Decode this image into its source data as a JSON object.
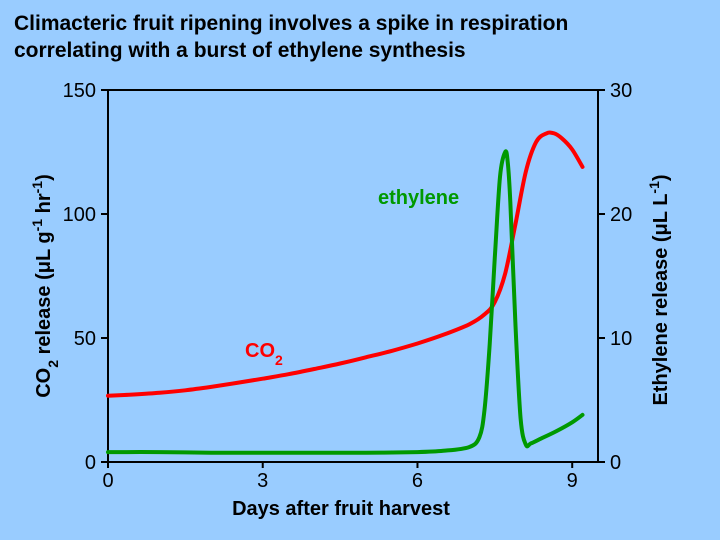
{
  "title_line1": "Climacteric fruit ripening involves a spike in respiration",
  "title_line2": "correlating with a burst of ethylene synthesis",
  "chart_data": {
    "type": "line",
    "x_label": "Days after fruit harvest",
    "y_label_left": {
      "base": "CO",
      "sub": "2",
      "rest": " release (μL g",
      "sup1": "-1",
      "mid": " hr",
      "sup2": "-1",
      "end": ")"
    },
    "y_label_right": {
      "base": "Ethylene release (μL L",
      "sup": "-1",
      "end": ")"
    },
    "x_ticks": [
      "0",
      "3",
      "6",
      "9"
    ],
    "y_left_ticks": [
      "0",
      "50",
      "100",
      "150"
    ],
    "y_right_ticks": [
      "0",
      "10",
      "20",
      "30"
    ],
    "xlim": [
      0,
      9.5
    ],
    "ylim_left": [
      0,
      150
    ],
    "ylim_right": [
      0,
      30
    ],
    "colors": {
      "co2": "#ff0000",
      "ethylene": "#009900"
    },
    "annotations": {
      "co2": {
        "base": "CO",
        "sub": "2"
      },
      "ethylene": "ethylene"
    },
    "series": [
      {
        "name": "CO2",
        "axis": "left",
        "x": [
          0.0,
          0.5,
          1.0,
          1.5,
          2.0,
          2.5,
          3.0,
          3.5,
          4.0,
          4.5,
          5.0,
          5.5,
          6.0,
          6.5,
          7.0,
          7.3,
          7.5,
          7.7,
          7.9,
          8.1,
          8.3,
          8.5,
          8.65,
          8.8,
          9.0,
          9.2
        ],
        "y": [
          26.7,
          27.2,
          27.9,
          28.9,
          30.3,
          31.9,
          33.6,
          35.4,
          37.5,
          39.7,
          42.2,
          44.8,
          47.8,
          51.3,
          55.5,
          59.5,
          64.5,
          76.0,
          96.0,
          117.0,
          129.0,
          132.5,
          132.5,
          130.5,
          126.0,
          119.0
        ]
      },
      {
        "name": "ethylene",
        "axis": "right",
        "x": [
          0.0,
          1.0,
          2.0,
          3.0,
          4.0,
          5.0,
          6.0,
          6.5,
          7.0,
          7.2,
          7.3,
          7.4,
          7.5,
          7.6,
          7.7,
          7.75,
          7.8,
          7.9,
          8.0,
          8.1,
          8.2,
          8.4,
          8.7,
          9.0,
          9.2
        ],
        "y": [
          0.8,
          0.8,
          0.75,
          0.75,
          0.75,
          0.75,
          0.8,
          0.9,
          1.2,
          2.0,
          4.2,
          9.5,
          16.5,
          23.0,
          25.0,
          24.2,
          21.0,
          11.0,
          3.5,
          1.4,
          1.5,
          1.9,
          2.5,
          3.2,
          3.8
        ]
      }
    ]
  }
}
